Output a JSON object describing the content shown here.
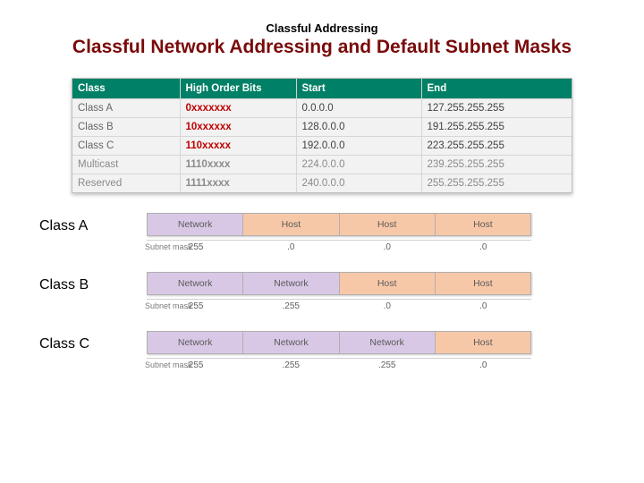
{
  "pretitle": "Classful Addressing",
  "title_prefix": "Classful Network Addressing and Default Subnet Masks",
  "title_color": "#7a0a0a",
  "class_table": {
    "header_bg": "#008066",
    "header_fg": "#ffffff",
    "cell_bg": "#f2f2f2",
    "border_color": "#d6d6d6",
    "columns": [
      "Class",
      "High Order Bits",
      "Start",
      "End"
    ],
    "rows": [
      {
        "cls": "Class A",
        "hob": "0xxxxxxx",
        "start": "0.0.0.0",
        "end": "127.255.255.255",
        "hob_red": true
      },
      {
        "cls": "Class B",
        "hob": "10xxxxxx",
        "start": "128.0.0.0",
        "end": "191.255.255.255",
        "hob_red": true
      },
      {
        "cls": "Class C",
        "hob": "110xxxxx",
        "start": "192.0.0.0",
        "end": "223.255.255.255",
        "hob_red": true
      },
      {
        "cls": "Multicast",
        "hob": "1110xxxx",
        "start": "224.0.0.0",
        "end": "239.255.255.255",
        "hob_red": false
      },
      {
        "cls": "Reserved",
        "hob": "1111xxxx",
        "start": "240.0.0.0",
        "end": "255.255.255.255",
        "hob_red": false
      }
    ]
  },
  "colors": {
    "network_bg": "#d8c8e6",
    "host_bg": "#f7c8a8"
  },
  "labels": {
    "network": "Network",
    "host": "Host",
    "subnet_mask": "Subnet mask"
  },
  "octet_blocks": [
    {
      "label": "Class A",
      "cells": [
        "net",
        "host",
        "host",
        "host"
      ],
      "mask": [
        ".255",
        ".0",
        ".0",
        ".0"
      ]
    },
    {
      "label": "Class B",
      "cells": [
        "net",
        "net",
        "host",
        "host"
      ],
      "mask": [
        ".255",
        ".255",
        ".0",
        ".0"
      ]
    },
    {
      "label": "Class C",
      "cells": [
        "net",
        "net",
        "net",
        "host"
      ],
      "mask": [
        ".255",
        ".255",
        ".255",
        ".0"
      ]
    }
  ]
}
